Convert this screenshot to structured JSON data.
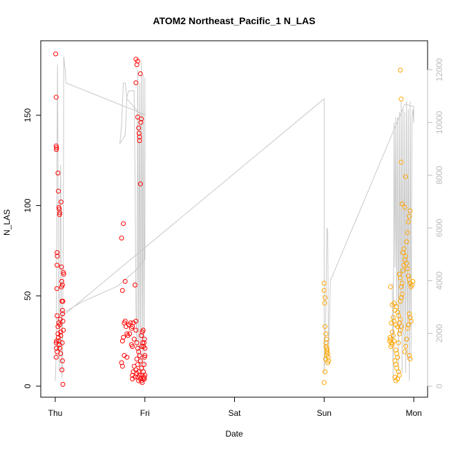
{
  "chart_data": {
    "type": "scatter",
    "title": "ATOM2 Northeast_Pacific_1 N_LAS",
    "xlabel": "Date",
    "ylabel": "N_LAS",
    "x_unit": "day",
    "x_tick_labels": [
      {
        "x": 0,
        "label": "Thu"
      },
      {
        "x": 1,
        "label": "Fri"
      },
      {
        "x": 2,
        "label": "Sat"
      },
      {
        "x": 3,
        "label": "Sun"
      },
      {
        "x": 4,
        "label": "Mon"
      }
    ],
    "xlim": [
      0,
      4
    ],
    "ylim": [
      0,
      184
    ],
    "y_ticks": [
      0,
      50,
      100,
      150
    ],
    "y2_ticks": [
      0,
      2000,
      4000,
      6000,
      8000,
      10000,
      12000
    ],
    "y2lim": [
      0,
      13000
    ],
    "colors": {
      "red": "#ff0000",
      "orange": "#ffa500",
      "line": "#c8c8c8",
      "secondary_axis": "#bbbbbb"
    },
    "series": [
      {
        "color": "#ff0000",
        "points": [
          [
            0.005,
            184
          ],
          [
            0.01,
            160
          ],
          [
            0.01,
            133
          ],
          [
            0.012,
            131
          ],
          [
            0.015,
            132
          ],
          [
            0.02,
            74
          ],
          [
            0.022,
            72
          ],
          [
            0.02,
            67
          ],
          [
            0.018,
            54
          ],
          [
            0.02,
            39
          ],
          [
            0.015,
            25
          ],
          [
            0.01,
            24
          ],
          [
            0.012,
            21
          ],
          [
            0.01,
            16
          ],
          [
            0.02,
            19
          ],
          [
            0.03,
            118
          ],
          [
            0.035,
            108
          ],
          [
            0.04,
            99
          ],
          [
            0.045,
            98
          ],
          [
            0.048,
            95
          ],
          [
            0.05,
            96
          ],
          [
            0.05,
            34
          ],
          [
            0.055,
            37
          ],
          [
            0.04,
            35
          ],
          [
            0.03,
            33
          ],
          [
            0.03,
            29
          ],
          [
            0.035,
            27
          ],
          [
            0.04,
            25
          ],
          [
            0.045,
            23
          ],
          [
            0.05,
            21
          ],
          [
            0.065,
            102
          ],
          [
            0.07,
            66
          ],
          [
            0.072,
            58
          ],
          [
            0.07,
            55
          ],
          [
            0.075,
            47
          ],
          [
            0.08,
            56
          ],
          [
            0.085,
            47
          ],
          [
            0.08,
            42
          ],
          [
            0.082,
            40
          ],
          [
            0.09,
            63
          ],
          [
            0.095,
            62
          ],
          [
            0.09,
            31
          ],
          [
            0.078,
            24
          ],
          [
            0.08,
            14
          ],
          [
            0.085,
            1
          ],
          [
            0.075,
            9
          ],
          [
            0.085,
            36
          ],
          [
            0.06,
            30
          ],
          [
            0.062,
            28
          ],
          [
            0.06,
            18
          ]
        ]
      },
      {
        "color": "#ff0000",
        "points": [
          [
            0.74,
            82
          ],
          [
            0.76,
            90
          ],
          [
            0.78,
            58
          ],
          [
            0.75,
            53
          ],
          [
            0.77,
            35
          ],
          [
            0.78,
            36
          ],
          [
            0.79,
            33
          ],
          [
            0.8,
            29
          ],
          [
            0.82,
            34
          ],
          [
            0.76,
            27
          ],
          [
            0.75,
            25
          ],
          [
            0.74,
            13
          ],
          [
            0.75,
            11
          ],
          [
            0.77,
            17
          ],
          [
            0.8,
            16
          ],
          [
            0.81,
            28
          ],
          [
            0.83,
            29
          ],
          [
            0.84,
            35
          ],
          [
            0.85,
            32
          ],
          [
            0.86,
            33
          ],
          [
            0.87,
            35
          ],
          [
            0.88,
            26
          ],
          [
            0.85,
            23
          ],
          [
            0.86,
            22
          ],
          [
            0.9,
            168
          ],
          [
            0.9,
            181
          ],
          [
            0.91,
            178
          ],
          [
            0.92,
            180
          ],
          [
            0.92,
            149
          ],
          [
            0.93,
            143
          ],
          [
            0.935,
            140
          ],
          [
            0.94,
            138
          ],
          [
            0.94,
            136
          ],
          [
            0.95,
            173
          ],
          [
            0.95,
            112
          ],
          [
            0.955,
            146
          ],
          [
            0.96,
            148
          ],
          [
            0.89,
            56
          ],
          [
            0.9,
            36
          ],
          [
            0.9,
            31
          ],
          [
            0.91,
            24
          ],
          [
            0.92,
            21
          ],
          [
            0.93,
            19
          ],
          [
            0.94,
            17
          ],
          [
            0.95,
            14
          ],
          [
            0.96,
            10
          ],
          [
            0.97,
            6
          ],
          [
            0.98,
            4
          ],
          [
            0.985,
            8
          ],
          [
            0.99,
            12
          ],
          [
            0.995,
            16
          ],
          [
            1.0,
            17
          ],
          [
            0.985,
            22
          ],
          [
            0.99,
            24
          ],
          [
            0.995,
            26
          ],
          [
            1.0,
            21
          ],
          [
            0.99,
            5
          ],
          [
            0.995,
            4
          ],
          [
            1.0,
            6
          ],
          [
            0.96,
            3
          ],
          [
            0.97,
            2
          ],
          [
            0.93,
            3
          ],
          [
            0.92,
            5
          ],
          [
            0.91,
            7
          ],
          [
            0.9,
            9
          ],
          [
            0.88,
            11
          ],
          [
            0.87,
            8
          ],
          [
            0.86,
            6
          ],
          [
            0.86,
            4
          ],
          [
            0.89,
            5
          ],
          [
            0.95,
            4
          ],
          [
            0.94,
            6
          ],
          [
            0.93,
            8
          ],
          [
            0.92,
            12
          ],
          [
            0.91,
            15
          ],
          [
            0.96,
            28
          ],
          [
            0.97,
            30
          ],
          [
            0.98,
            31
          ],
          [
            0.975,
            24
          ],
          [
            0.965,
            22
          ]
        ]
      },
      {
        "color": "#ffa500",
        "points": [
          [
            3.0,
            57
          ],
          [
            3.0,
            53
          ],
          [
            3.01,
            49
          ],
          [
            3.005,
            46
          ],
          [
            3.01,
            33
          ],
          [
            3.02,
            29
          ],
          [
            3.025,
            26
          ],
          [
            3.02,
            22
          ],
          [
            3.03,
            21
          ],
          [
            3.035,
            20
          ],
          [
            3.04,
            18
          ],
          [
            3.045,
            16
          ],
          [
            3.05,
            14
          ],
          [
            3.03,
            19
          ],
          [
            3.025,
            17
          ],
          [
            3.02,
            24
          ],
          [
            3.015,
            15
          ],
          [
            3.01,
            8
          ],
          [
            3.0,
            2
          ],
          [
            3.04,
            13
          ]
        ]
      },
      {
        "color": "#ffa500",
        "points": [
          [
            3.74,
            55
          ],
          [
            3.76,
            45
          ],
          [
            3.78,
            46
          ],
          [
            3.79,
            42
          ],
          [
            3.77,
            38
          ],
          [
            3.78,
            36
          ],
          [
            3.8,
            34
          ],
          [
            3.82,
            33
          ],
          [
            3.75,
            35
          ],
          [
            3.76,
            30
          ],
          [
            3.77,
            28
          ],
          [
            3.78,
            25
          ],
          [
            3.74,
            26
          ],
          [
            3.75,
            24
          ],
          [
            3.76,
            23
          ],
          [
            3.73,
            25
          ],
          [
            3.735,
            27
          ],
          [
            3.745,
            22
          ],
          [
            3.8,
            20
          ],
          [
            3.81,
            18
          ],
          [
            3.82,
            16
          ],
          [
            3.79,
            14
          ],
          [
            3.8,
            12
          ],
          [
            3.81,
            10
          ],
          [
            3.83,
            8
          ],
          [
            3.84,
            6
          ],
          [
            3.82,
            4
          ],
          [
            3.8,
            3
          ],
          [
            3.79,
            5
          ],
          [
            3.83,
            24
          ],
          [
            3.84,
            29
          ],
          [
            3.85,
            31
          ],
          [
            3.86,
            33
          ],
          [
            3.84,
            35
          ],
          [
            3.85,
            37
          ],
          [
            3.83,
            39
          ],
          [
            3.82,
            41
          ],
          [
            3.81,
            44
          ],
          [
            3.85,
            47
          ],
          [
            3.86,
            49
          ],
          [
            3.87,
            51
          ],
          [
            3.86,
            55
          ],
          [
            3.87,
            57
          ],
          [
            3.85,
            60
          ],
          [
            3.84,
            62
          ],
          [
            3.88,
            64
          ],
          [
            3.89,
            67
          ],
          [
            3.9,
            70
          ],
          [
            3.91,
            72
          ],
          [
            3.92,
            68
          ],
          [
            3.93,
            65
          ],
          [
            3.94,
            61
          ],
          [
            3.95,
            59
          ],
          [
            3.96,
            57
          ],
          [
            3.97,
            55
          ],
          [
            3.98,
            56
          ],
          [
            3.99,
            58
          ],
          [
            3.92,
            80
          ],
          [
            3.93,
            85
          ],
          [
            3.94,
            91
          ],
          [
            3.95,
            94
          ],
          [
            3.96,
            97
          ],
          [
            3.9,
            99
          ],
          [
            3.91,
            116
          ],
          [
            3.87,
            101
          ],
          [
            3.86,
            124
          ],
          [
            3.85,
            175
          ],
          [
            3.86,
            159
          ],
          [
            3.88,
            74
          ],
          [
            3.89,
            76
          ],
          [
            3.95,
            40
          ],
          [
            3.96,
            38
          ],
          [
            3.97,
            36
          ],
          [
            3.94,
            34
          ],
          [
            3.93,
            32
          ],
          [
            3.92,
            26
          ],
          [
            3.91,
            22
          ],
          [
            3.9,
            19
          ],
          [
            3.95,
            17
          ],
          [
            3.96,
            15
          ]
        ]
      }
    ],
    "line_series": {
      "color": "#c8c8c8",
      "axis": "right",
      "points": [
        [
          0.0,
          200
        ],
        [
          0.01,
          1200
        ],
        [
          0.015,
          5200
        ],
        [
          0.02,
          9000
        ],
        [
          0.025,
          12200
        ],
        [
          0.03,
          9000
        ],
        [
          0.035,
          4000
        ],
        [
          0.04,
          1600
        ],
        [
          0.045,
          600
        ],
        [
          0.05,
          2000
        ],
        [
          0.055,
          6500
        ],
        [
          0.06,
          8400
        ],
        [
          0.065,
          4500
        ],
        [
          0.07,
          1200
        ],
        [
          0.075,
          300
        ],
        [
          0.08,
          1500
        ],
        [
          0.09,
          6000
        ],
        [
          0.095,
          12500
        ],
        [
          0.1,
          12300
        ],
        [
          0.11,
          12000
        ],
        [
          0.12,
          11500
        ],
        [
          1.0,
          10300
        ],
        [
          0.95,
          10300
        ],
        [
          0.9,
          10500
        ],
        [
          0.85,
          10700
        ],
        [
          0.8,
          10900
        ],
        [
          0.78,
          11500
        ],
        [
          0.76,
          11500
        ],
        [
          0.75,
          10700
        ],
        [
          0.74,
          9900
        ],
        [
          0.73,
          9500
        ],
        [
          0.72,
          9200
        ],
        [
          0.74,
          9300
        ],
        [
          0.76,
          9400
        ],
        [
          0.78,
          9500
        ],
        [
          0.8,
          11000
        ],
        [
          0.82,
          11200
        ],
        [
          0.84,
          11200
        ],
        [
          0.86,
          11200
        ],
        [
          0.88,
          11200
        ],
        [
          0.89,
          8000
        ],
        [
          0.9,
          3000
        ],
        [
          0.91,
          1500
        ],
        [
          0.92,
          12000
        ],
        [
          0.93,
          800
        ],
        [
          0.94,
          11500
        ],
        [
          0.95,
          500
        ],
        [
          0.96,
          12300
        ],
        [
          0.97,
          800
        ],
        [
          0.98,
          11800
        ],
        [
          0.99,
          400
        ],
        [
          1.0,
          11700
        ],
        [
          1.0,
          4800
        ],
        [
          0.9,
          4400
        ],
        [
          0.7,
          3800
        ],
        [
          0.5,
          3500
        ],
        [
          0.3,
          3200
        ],
        [
          0.1,
          2800
        ],
        [
          0.06,
          2600
        ],
        [
          3.0,
          10900
        ],
        [
          3.0,
          500
        ],
        [
          3.01,
          1200
        ],
        [
          3.02,
          3000
        ],
        [
          3.03,
          6000
        ],
        [
          3.04,
          5900
        ],
        [
          3.05,
          1200
        ],
        [
          3.06,
          2500
        ],
        [
          3.07,
          4000
        ],
        [
          3.9,
          10700
        ],
        [
          4.0,
          10600
        ],
        [
          4.0,
          10000
        ],
        [
          3.99,
          10500
        ],
        [
          3.98,
          10100
        ],
        [
          3.97,
          1000
        ],
        [
          3.96,
          10800
        ],
        [
          3.95,
          200
        ],
        [
          3.94,
          10500
        ],
        [
          3.93,
          1000
        ],
        [
          3.92,
          10800
        ],
        [
          3.91,
          500
        ],
        [
          3.9,
          10400
        ],
        [
          3.89,
          1500
        ],
        [
          3.88,
          10500
        ],
        [
          3.87,
          500
        ],
        [
          3.86,
          10800
        ],
        [
          3.85,
          2000
        ],
        [
          3.84,
          10400
        ],
        [
          3.83,
          500
        ],
        [
          3.82,
          10200
        ],
        [
          3.81,
          3000
        ],
        [
          3.8,
          10200
        ],
        [
          3.79,
          4500
        ],
        [
          3.78,
          10000
        ],
        [
          3.77,
          200
        ],
        [
          3.76,
          3900
        ]
      ]
    }
  }
}
